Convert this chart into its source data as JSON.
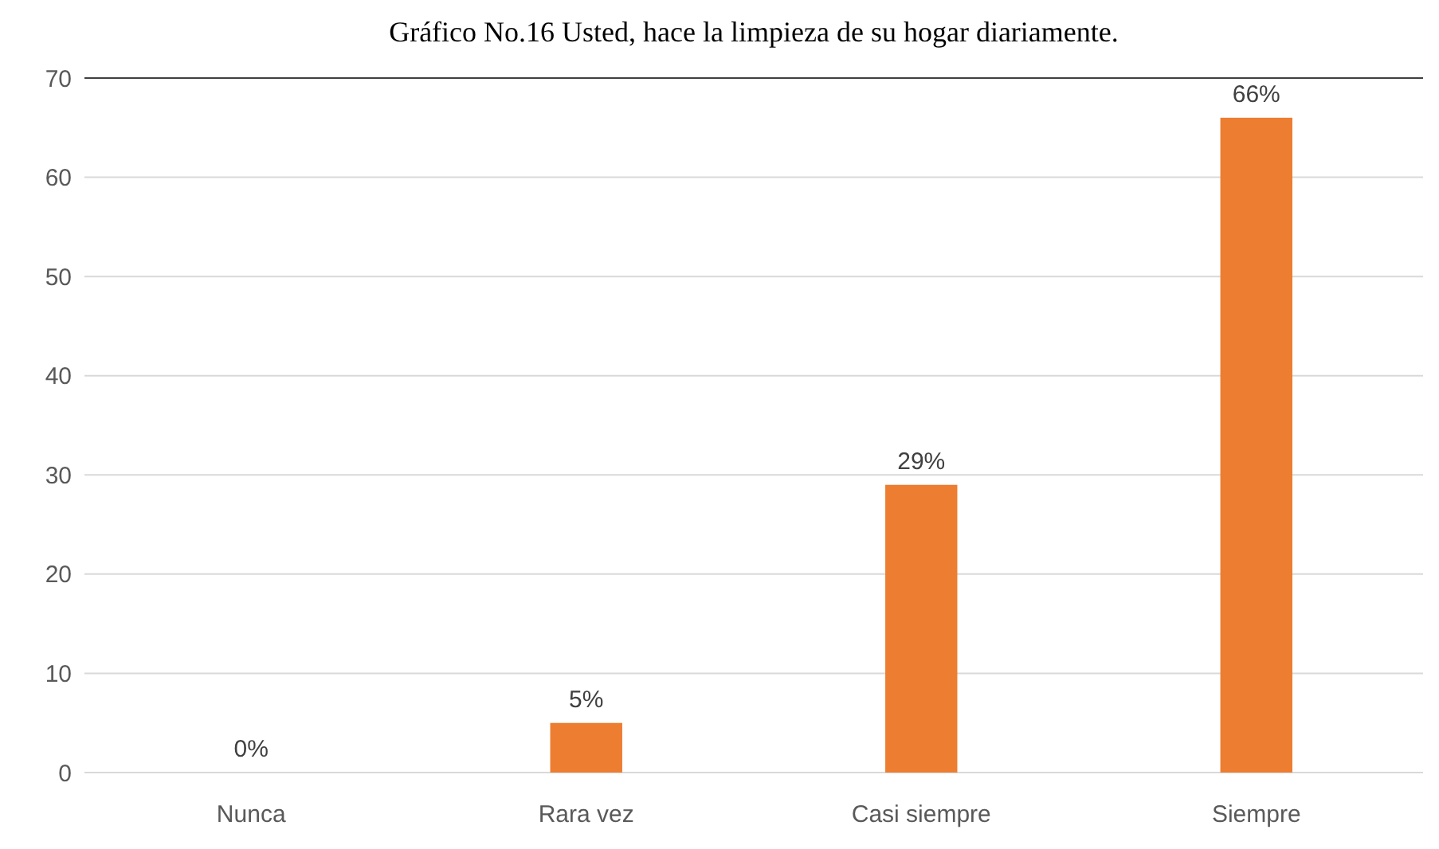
{
  "chart_data": {
    "type": "bar",
    "title": "Gráfico No.16 Usted, hace la limpieza de su hogar diariamente.",
    "categories": [
      "Nunca",
      "Rara vez",
      "Casi siempre",
      "Siempre"
    ],
    "values": [
      0,
      5,
      29,
      66
    ],
    "color": "#ed7d31",
    "value_labels": [
      "0%",
      "5%",
      "29%",
      "66%"
    ],
    "ylim": [
      0,
      70
    ],
    "yticks": [
      0,
      10,
      20,
      30,
      40,
      50,
      60,
      70
    ],
    "grid": "y"
  }
}
